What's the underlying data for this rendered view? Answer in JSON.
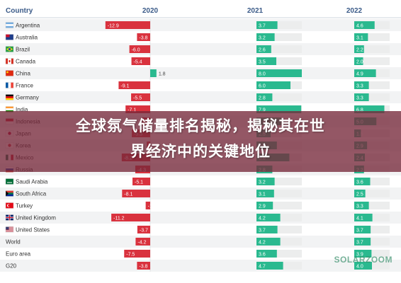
{
  "overlay": {
    "title_line1": "全球氛气储量排名揭秘，揭秘其在世",
    "title_line2": "界经济中的关键地位"
  },
  "watermark": {
    "text": "SOLARZOOM"
  },
  "colors": {
    "negative": "#d9323e",
    "positive_2020": "#2ab98f",
    "bar_2021": "#2ab98f",
    "bar_2022": "#2ab98f",
    "header_text": "#3a5a88",
    "row_alt": "#f2f3f4",
    "track": "#eceded"
  },
  "chart_data": {
    "type": "bar",
    "headers": {
      "country": "Country",
      "columns": [
        "2020",
        "2021",
        "2022"
      ]
    },
    "categories": [
      "Argentina",
      "Australia",
      "Brazil",
      "Canada",
      "China",
      "France",
      "Germany",
      "India",
      "Indonesia",
      "Japan",
      "Korea",
      "Mexico",
      "Russia",
      "Saudi Arabia",
      "South Africa",
      "Turkey",
      "United Kingdom",
      "United States",
      "World",
      "Euro area",
      "G20"
    ],
    "flags": [
      "argentina-flag-icon",
      "australia-flag-icon",
      "brazil-flag-icon",
      "canada-flag-icon",
      "china-flag-icon",
      "france-flag-icon",
      "germany-flag-icon",
      "india-flag-icon",
      "indonesia-flag-icon",
      "japan-flag-icon",
      "korea-flag-icon",
      "mexico-flag-icon",
      "russia-flag-icon",
      "saudi-arabia-flag-icon",
      "south-africa-flag-icon",
      "turkey-flag-icon",
      "united-kingdom-flag-icon",
      "united-states-flag-icon",
      "",
      "",
      ""
    ],
    "series": [
      {
        "name": "2020",
        "values": [
          -12.9,
          -3.8,
          -6.0,
          -5.4,
          1.8,
          -9.1,
          -5.5,
          -7.1,
          -2.3,
          -5.3,
          -1.0,
          -8.2,
          -4.3,
          -5.1,
          -8.1,
          -1.3,
          -11.2,
          -3.7,
          -4.2,
          -7.5,
          -3.8
        ]
      },
      {
        "name": "2021",
        "values": [
          3.7,
          3.2,
          2.6,
          3.5,
          8.0,
          6.0,
          2.8,
          7.9,
          4.4,
          2.5,
          3.6,
          5.8,
          2.8,
          3.2,
          3.1,
          2.9,
          4.2,
          3.7,
          4.2,
          3.6,
          4.7
        ]
      },
      {
        "name": "2022",
        "values": [
          4.6,
          3.1,
          2.2,
          2.0,
          4.9,
          3.3,
          3.3,
          6.8,
          5.0,
          1.5,
          2.9,
          2.4,
          2.2,
          3.6,
          2.5,
          3.3,
          4.1,
          3.7,
          3.7,
          3.9,
          4.0
        ]
      }
    ]
  }
}
